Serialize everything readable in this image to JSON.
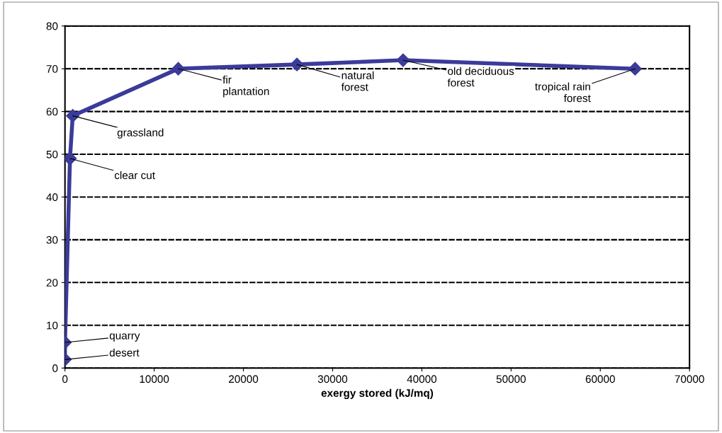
{
  "chart_data": {
    "type": "line",
    "xlabel": "exergy stored (kJ/mq)",
    "x": [
      0,
      0,
      560,
      870,
      12700,
      26000,
      37900,
      63900
    ],
    "series": [
      {
        "color": "#3b3b9b",
        "values": [
          2,
          6,
          49,
          59,
          70,
          71,
          72,
          70
        ]
      }
    ],
    "xlim": [
      0,
      70000
    ],
    "xticks": [
      0,
      10000,
      20000,
      30000,
      40000,
      50000,
      60000,
      70000
    ],
    "ylim": [
      0,
      80
    ],
    "yticks": [
      0,
      10,
      20,
      30,
      40,
      50,
      60,
      70,
      80
    ],
    "grid": "y",
    "marker": "diamond",
    "line_style": "solid",
    "annotations": [
      {
        "text": "desert",
        "x": 0,
        "y": 2
      },
      {
        "text": "quarry",
        "x": 0,
        "y": 6
      },
      {
        "text": "clear cut",
        "x": 560,
        "y": 49
      },
      {
        "text": "grassland",
        "x": 870,
        "y": 59
      },
      {
        "text": "fir\nplantation",
        "x": 12700,
        "y": 70
      },
      {
        "text": "natural\nforest",
        "x": 26000,
        "y": 71
      },
      {
        "text": "old deciduous\nforest",
        "x": 37900,
        "y": 72
      },
      {
        "text": "tropical rain\nforest",
        "x": 63900,
        "y": 70
      }
    ]
  }
}
